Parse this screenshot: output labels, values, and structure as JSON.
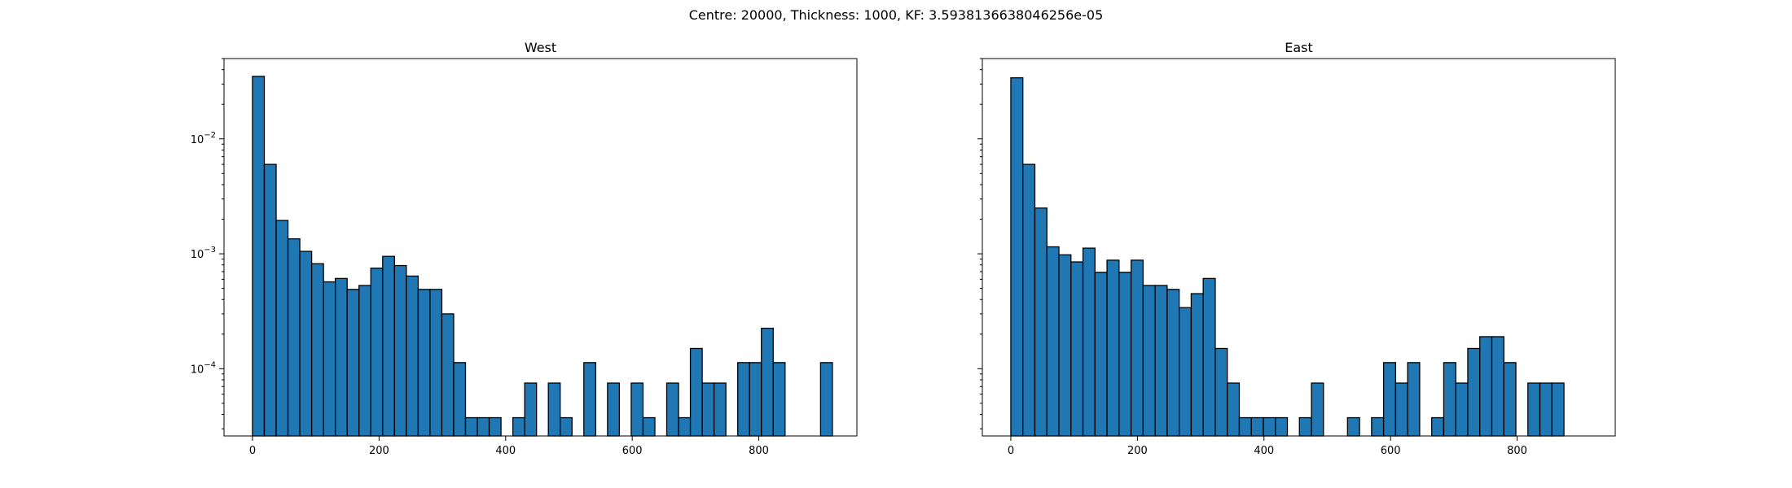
{
  "figure": {
    "suptitle": "Centre: 20000, Thickness: 1000, KF: 3.5938136638046256e-05"
  },
  "chart_data": [
    {
      "type": "bar",
      "title": "West",
      "xlabel": "",
      "ylabel": "",
      "xlim": [
        -45,
        955
      ],
      "ylim": [
        2.6e-05,
        0.05
      ],
      "yscale": "log",
      "bin_width": 18.7,
      "xticks": [
        0,
        200,
        400,
        600,
        800
      ],
      "xtick_labels": [
        "0",
        "200",
        "400",
        "600",
        "800"
      ],
      "yticks": [
        0.0001,
        0.001,
        0.01
      ],
      "ytick_labels": [
        "10",
        "10",
        "10"
      ],
      "ytick_exponents": [
        "−4",
        "−3",
        "−2"
      ],
      "show_ytick_labels": true,
      "grid": false,
      "bins": [
        {
          "x": 0,
          "y": 0.035
        },
        {
          "x": 18.7,
          "y": 0.006
        },
        {
          "x": 37.4,
          "y": 0.00195
        },
        {
          "x": 56.1,
          "y": 0.00135
        },
        {
          "x": 74.8,
          "y": 0.00105
        },
        {
          "x": 93.5,
          "y": 0.00082
        },
        {
          "x": 112.2,
          "y": 0.00057
        },
        {
          "x": 130.9,
          "y": 0.00061
        },
        {
          "x": 149.6,
          "y": 0.00049
        },
        {
          "x": 168.3,
          "y": 0.00053
        },
        {
          "x": 187.0,
          "y": 0.00075
        },
        {
          "x": 205.7,
          "y": 0.00095
        },
        {
          "x": 224.4,
          "y": 0.00079
        },
        {
          "x": 243.1,
          "y": 0.00064
        },
        {
          "x": 261.8,
          "y": 0.00049
        },
        {
          "x": 280.5,
          "y": 0.00049
        },
        {
          "x": 299.2,
          "y": 0.0003
        },
        {
          "x": 317.9,
          "y": 0.000113
        },
        {
          "x": 336.6,
          "y": 3.75e-05
        },
        {
          "x": 355.3,
          "y": 3.75e-05
        },
        {
          "x": 374.0,
          "y": 3.75e-05
        },
        {
          "x": 411.4,
          "y": 3.75e-05
        },
        {
          "x": 430.1,
          "y": 7.5e-05
        },
        {
          "x": 467.5,
          "y": 7.5e-05
        },
        {
          "x": 486.2,
          "y": 3.75e-05
        },
        {
          "x": 523.6,
          "y": 0.000113
        },
        {
          "x": 561.0,
          "y": 7.5e-05
        },
        {
          "x": 598.4,
          "y": 7.5e-05
        },
        {
          "x": 617.1,
          "y": 3.75e-05
        },
        {
          "x": 654.5,
          "y": 7.5e-05
        },
        {
          "x": 673.2,
          "y": 3.75e-05
        },
        {
          "x": 691.9,
          "y": 0.00015
        },
        {
          "x": 710.6,
          "y": 7.5e-05
        },
        {
          "x": 729.3,
          "y": 7.5e-05
        },
        {
          "x": 766.7,
          "y": 0.000113
        },
        {
          "x": 785.4,
          "y": 0.000113
        },
        {
          "x": 804.1,
          "y": 0.000225
        },
        {
          "x": 822.8,
          "y": 0.000113
        },
        {
          "x": 897.6,
          "y": 0.000113
        }
      ]
    },
    {
      "type": "bar",
      "title": "East",
      "xlabel": "",
      "ylabel": "",
      "xlim": [
        -45,
        955
      ],
      "ylim": [
        2.6e-05,
        0.05
      ],
      "yscale": "log",
      "bin_width": 19.0,
      "xticks": [
        0,
        200,
        400,
        600,
        800
      ],
      "xtick_labels": [
        "0",
        "200",
        "400",
        "600",
        "800"
      ],
      "yticks": [
        0.0001,
        0.001,
        0.01
      ],
      "ytick_labels": [],
      "show_ytick_labels": false,
      "grid": false,
      "bins": [
        {
          "x": 0,
          "y": 0.034
        },
        {
          "x": 19,
          "y": 0.006
        },
        {
          "x": 38,
          "y": 0.0025
        },
        {
          "x": 57,
          "y": 0.00115
        },
        {
          "x": 76,
          "y": 0.00098
        },
        {
          "x": 95,
          "y": 0.00085
        },
        {
          "x": 114,
          "y": 0.00112
        },
        {
          "x": 133,
          "y": 0.00069
        },
        {
          "x": 152,
          "y": 0.00088
        },
        {
          "x": 171,
          "y": 0.00069
        },
        {
          "x": 190,
          "y": 0.00088
        },
        {
          "x": 209,
          "y": 0.00053
        },
        {
          "x": 228,
          "y": 0.00053
        },
        {
          "x": 247,
          "y": 0.00049
        },
        {
          "x": 266,
          "y": 0.00034
        },
        {
          "x": 285,
          "y": 0.00045
        },
        {
          "x": 304,
          "y": 0.00061
        },
        {
          "x": 323,
          "y": 0.00015
        },
        {
          "x": 342,
          "y": 7.5e-05
        },
        {
          "x": 361,
          "y": 3.75e-05
        },
        {
          "x": 380,
          "y": 3.75e-05
        },
        {
          "x": 399,
          "y": 3.75e-05
        },
        {
          "x": 418,
          "y": 3.75e-05
        },
        {
          "x": 456,
          "y": 3.75e-05
        },
        {
          "x": 475,
          "y": 7.5e-05
        },
        {
          "x": 532,
          "y": 3.75e-05
        },
        {
          "x": 570,
          "y": 3.75e-05
        },
        {
          "x": 589,
          "y": 0.000113
        },
        {
          "x": 608,
          "y": 7.5e-05
        },
        {
          "x": 627,
          "y": 0.000113
        },
        {
          "x": 665,
          "y": 3.75e-05
        },
        {
          "x": 684,
          "y": 0.000113
        },
        {
          "x": 703,
          "y": 7.5e-05
        },
        {
          "x": 722,
          "y": 0.00015
        },
        {
          "x": 741,
          "y": 0.00019
        },
        {
          "x": 760,
          "y": 0.00019
        },
        {
          "x": 779,
          "y": 0.000113
        },
        {
          "x": 817,
          "y": 7.5e-05
        },
        {
          "x": 836,
          "y": 7.5e-05
        },
        {
          "x": 855,
          "y": 7.5e-05
        }
      ]
    }
  ]
}
